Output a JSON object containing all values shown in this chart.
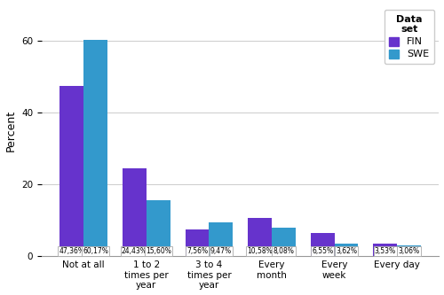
{
  "categories": [
    "Not at all",
    "1 to 2\ntimes per\nyear",
    "3 to 4\ntimes per\nyear",
    "Every\nmonth",
    "Every\nweek",
    "Every day"
  ],
  "FIN": [
    47.36,
    24.43,
    7.56,
    10.58,
    6.55,
    3.53
  ],
  "SWE": [
    60.17,
    15.6,
    9.47,
    8.08,
    3.62,
    3.06
  ],
  "FIN_labels": [
    "47,36%",
    "24,43%",
    "7,56%",
    "10,58%",
    "6,55%",
    "3,53%"
  ],
  "SWE_labels": [
    "60,17%",
    "15,60%",
    "9,47%",
    "8,08%",
    "3,62%",
    "3,06%"
  ],
  "FIN_color": "#6633cc",
  "SWE_color": "#3399cc",
  "ylabel": "Percent",
  "ylim": [
    0,
    70
  ],
  "yticks": [
    0,
    20,
    40,
    60
  ],
  "legend_title": "Data\nset",
  "legend_labels": [
    "FIN",
    "SWE"
  ],
  "bar_width": 0.38,
  "label_fontsize": 5.5,
  "axis_label_fontsize": 9,
  "tick_fontsize": 7.5,
  "legend_fontsize": 8
}
